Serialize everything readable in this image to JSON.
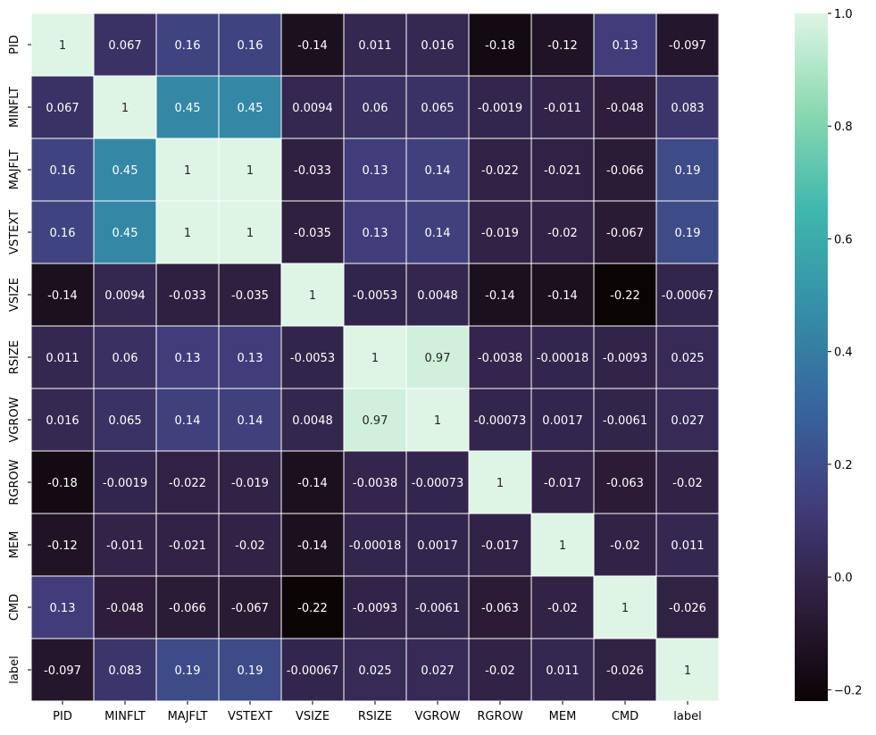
{
  "chart_data": {
    "type": "heatmap",
    "title": "",
    "xlabel": "",
    "ylabel": "",
    "x_categories": [
      "PID",
      "MINFLT",
      "MAJFLT",
      "VSTEXT",
      "VSIZE",
      "RSIZE",
      "VGROW",
      "RGROW",
      "MEM",
      "CMD",
      "label"
    ],
    "y_categories": [
      "PID",
      "MINFLT",
      "MAJFLT",
      "VSTEXT",
      "VSIZE",
      "RSIZE",
      "VGROW",
      "RGROW",
      "MEM",
      "CMD",
      "label"
    ],
    "values": [
      [
        1,
        0.067,
        0.16,
        0.16,
        -0.14,
        0.011,
        0.016,
        -0.18,
        -0.12,
        0.13,
        -0.097
      ],
      [
        0.067,
        1,
        0.45,
        0.45,
        0.0094,
        0.06,
        0.065,
        -0.0019,
        -0.011,
        -0.048,
        0.083
      ],
      [
        0.16,
        0.45,
        1,
        1,
        -0.033,
        0.13,
        0.14,
        -0.022,
        -0.021,
        -0.066,
        0.19
      ],
      [
        0.16,
        0.45,
        1,
        1,
        -0.035,
        0.13,
        0.14,
        -0.019,
        -0.02,
        -0.067,
        0.19
      ],
      [
        -0.14,
        0.0094,
        -0.033,
        -0.035,
        1,
        -0.0053,
        0.0048,
        -0.14,
        -0.14,
        -0.22,
        -0.00067
      ],
      [
        0.011,
        0.06,
        0.13,
        0.13,
        -0.0053,
        1,
        0.97,
        -0.0038,
        -0.00018,
        -0.0093,
        0.025
      ],
      [
        0.016,
        0.065,
        0.14,
        0.14,
        0.0048,
        0.97,
        1,
        -0.00073,
        0.0017,
        -0.0061,
        0.027
      ],
      [
        -0.18,
        -0.0019,
        -0.022,
        -0.019,
        -0.14,
        -0.0038,
        -0.00073,
        1,
        -0.017,
        -0.063,
        -0.02
      ],
      [
        -0.12,
        -0.011,
        -0.021,
        -0.02,
        -0.14,
        -0.00018,
        0.0017,
        -0.017,
        1,
        -0.02,
        0.011
      ],
      [
        0.13,
        -0.048,
        -0.066,
        -0.067,
        -0.22,
        -0.0093,
        -0.0061,
        -0.063,
        -0.02,
        1,
        -0.026
      ],
      [
        -0.097,
        0.083,
        0.19,
        0.19,
        -0.00067,
        0.025,
        0.027,
        -0.02,
        0.011,
        -0.026,
        1
      ]
    ],
    "value_labels": [
      [
        "1",
        "0.067",
        "0.16",
        "0.16",
        "-0.14",
        "0.011",
        "0.016",
        "-0.18",
        "-0.12",
        "0.13",
        "-0.097"
      ],
      [
        "0.067",
        "1",
        "0.45",
        "0.45",
        "0.0094",
        "0.06",
        "0.065",
        "-0.0019",
        "-0.011",
        "-0.048",
        "0.083"
      ],
      [
        "0.16",
        "0.45",
        "1",
        "1",
        "-0.033",
        "0.13",
        "0.14",
        "-0.022",
        "-0.021",
        "-0.066",
        "0.19"
      ],
      [
        "0.16",
        "0.45",
        "1",
        "1",
        "-0.035",
        "0.13",
        "0.14",
        "-0.019",
        "-0.02",
        "-0.067",
        "0.19"
      ],
      [
        "-0.14",
        "0.0094",
        "-0.033",
        "-0.035",
        "1",
        "-0.0053",
        "0.0048",
        "-0.14",
        "-0.14",
        "-0.22",
        "-0.00067"
      ],
      [
        "0.011",
        "0.06",
        "0.13",
        "0.13",
        "-0.0053",
        "1",
        "0.97",
        "-0.0038",
        "-0.00018",
        "-0.0093",
        "0.025"
      ],
      [
        "0.016",
        "0.065",
        "0.14",
        "0.14",
        "0.0048",
        "0.97",
        "1",
        "-0.00073",
        "0.0017",
        "-0.0061",
        "0.027"
      ],
      [
        "-0.18",
        "-0.0019",
        "-0.022",
        "-0.019",
        "-0.14",
        "-0.0038",
        "-0.00073",
        "1",
        "-0.017",
        "-0.063",
        "-0.02"
      ],
      [
        "-0.12",
        "-0.011",
        "-0.021",
        "-0.02",
        "-0.14",
        "-0.00018",
        "0.0017",
        "-0.017",
        "1",
        "-0.02",
        "0.011"
      ],
      [
        "0.13",
        "-0.048",
        "-0.066",
        "-0.067",
        "-0.22",
        "-0.0093",
        "-0.0061",
        "-0.063",
        "-0.02",
        "1",
        "-0.026"
      ],
      [
        "-0.097",
        "0.083",
        "0.19",
        "0.19",
        "-0.00067",
        "0.025",
        "0.027",
        "-0.02",
        "0.011",
        "-0.026",
        "1"
      ]
    ],
    "colorbar": {
      "vmin": -0.22,
      "vmax": 1,
      "ticks": [
        -0.2,
        0.0,
        0.2,
        0.4,
        0.6,
        0.8,
        1.0
      ],
      "tick_labels": [
        "−0.2",
        "0.0",
        "0.2",
        "0.4",
        "0.6",
        "0.8",
        "1.0"
      ]
    },
    "colormap": {
      "name": "mako",
      "stops": [
        "#0b0405",
        "#2e1e3c",
        "#413d7b",
        "#37659e",
        "#348fa7",
        "#40b7ad",
        "#8ad9b1",
        "#def5e5"
      ]
    },
    "grid": true,
    "legend": "colorbar-right"
  }
}
